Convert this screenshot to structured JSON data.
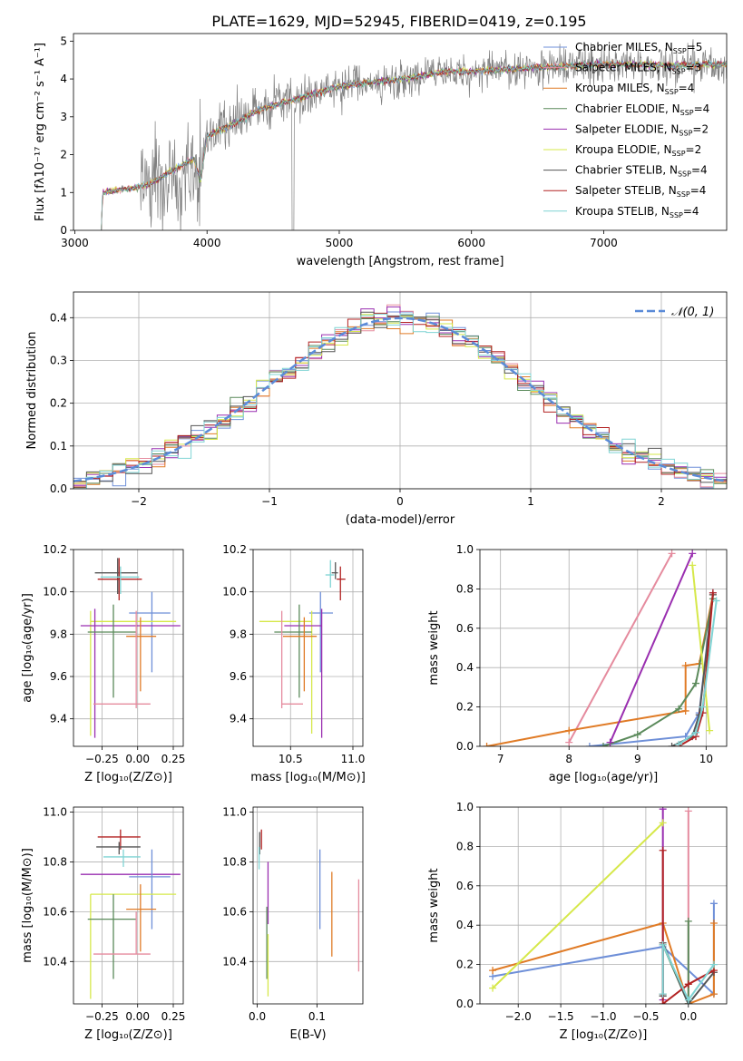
{
  "figure": {
    "title": "PLATE=1629, MJD=52945, FIBERID=0419, z=0.195"
  },
  "colors": {
    "chab_miles": "#6e8fd8",
    "salp_miles": "#e58b9e",
    "krou_miles": "#e07b26",
    "chab_elodie": "#5b8a5b",
    "salp_elodie": "#9a2fb0",
    "krou_elodie": "#d6e84a",
    "chab_stelib": "#555555",
    "salp_stelib": "#b22222",
    "krou_stelib": "#7fd4d4",
    "data_gray": "#808080",
    "normal_curve": "#5b8bd8"
  },
  "chart_data": [
    {
      "id": "spectrum",
      "type": "line",
      "xlabel": "wavelength [Angstrom, rest frame]",
      "ylabel": "Flux [fλ10⁻¹⁷ erg cm⁻² s⁻¹ A⁻¹]",
      "xlim": [
        2990,
        7930
      ],
      "ylim": [
        0,
        5.2
      ],
      "xticks": [
        3000,
        4000,
        5000,
        6000,
        7000
      ],
      "yticks": [
        0,
        1,
        2,
        3,
        4,
        5
      ],
      "x_range_plotted": [
        3200,
        7930
      ],
      "continuum_knots": [
        [
          3200,
          0.0
        ],
        [
          3210,
          1.0
        ],
        [
          3400,
          1.1
        ],
        [
          3550,
          1.2
        ],
        [
          3700,
          1.5
        ],
        [
          3900,
          1.9
        ],
        [
          3950,
          1.3
        ],
        [
          4000,
          2.5
        ],
        [
          4200,
          2.8
        ],
        [
          4400,
          3.2
        ],
        [
          4600,
          3.4
        ],
        [
          4800,
          3.6
        ],
        [
          5000,
          3.8
        ],
        [
          5200,
          3.9
        ],
        [
          5500,
          4.0
        ],
        [
          5800,
          4.2
        ],
        [
          6000,
          4.2
        ],
        [
          6500,
          4.3
        ],
        [
          7000,
          4.4
        ],
        [
          7500,
          4.35
        ],
        [
          7930,
          4.4
        ]
      ],
      "series": [
        {
          "name": "Chabrier MILES, N_SSP=5",
          "color_key": "chab_miles"
        },
        {
          "name": "Salpeter MILES, N_SSP=3",
          "color_key": "salp_miles"
        },
        {
          "name": "Kroupa MILES, N_SSP=4",
          "color_key": "krou_miles"
        },
        {
          "name": "Chabrier ELODIE, N_SSP=4",
          "color_key": "chab_elodie"
        },
        {
          "name": "Salpeter ELODIE, N_SSP=2",
          "color_key": "salp_elodie"
        },
        {
          "name": "Kroupa ELODIE, N_SSP=2",
          "color_key": "krou_elodie"
        },
        {
          "name": "Chabrier STELIB, N_SSP=4",
          "color_key": "chab_stelib"
        },
        {
          "name": "Salpeter STELIB, N_SSP=4",
          "color_key": "salp_stelib"
        },
        {
          "name": "Kroupa STELIB, N_SSP=4",
          "color_key": "krou_stelib"
        }
      ],
      "legend_placement": "upper-right"
    },
    {
      "id": "residuals",
      "type": "histogram",
      "xlabel": "(data-model)/error",
      "ylabel": "Normed distribution",
      "xlim": [
        -2.5,
        2.5
      ],
      "ylim": [
        0,
        0.46
      ],
      "xticks": [
        -2,
        -1,
        0,
        1,
        2
      ],
      "yticks": [
        0.0,
        0.1,
        0.2,
        0.3,
        0.4
      ],
      "bin_width": 0.1,
      "curve_label": "𝒩(0, 1)",
      "grid": true,
      "legend_placement": "upper-right"
    },
    {
      "id": "age_vs_Z",
      "type": "scatter",
      "xlabel": "Z [log₁₀(Z/Z⊙)]",
      "ylabel": "age  [log₁₀(age/yr)]",
      "xlim": [
        -0.45,
        0.32
      ],
      "ylim": [
        9.27,
        10.2
      ],
      "xticks": [
        -0.25,
        0.0,
        0.25
      ],
      "yticks": [
        9.4,
        9.6,
        9.8,
        10.0,
        10.2
      ],
      "grid": true,
      "points": [
        {
          "color_key": "chab_stelib",
          "x": -0.14,
          "xerr": [
            0.16,
            0.14
          ],
          "y": 10.09,
          "yerr": [
            0.1,
            0.07
          ]
        },
        {
          "color_key": "salp_stelib",
          "x": -0.13,
          "xerr": [
            0.15,
            0.16
          ],
          "y": 10.06,
          "yerr": [
            0.1,
            0.1
          ]
        },
        {
          "color_key": "krou_stelib",
          "x": -0.12,
          "xerr": [
            0.14,
            0.13
          ],
          "y": 10.07,
          "yerr": [
            0.08,
            0.05
          ]
        },
        {
          "color_key": "chab_miles",
          "x": 0.1,
          "xerr": [
            0.16,
            0.13
          ],
          "y": 9.9,
          "yerr": [
            0.28,
            0.1
          ]
        },
        {
          "color_key": "krou_elodie",
          "x": -0.33,
          "xerr": [
            0.0,
            0.6
          ],
          "y": 9.86,
          "yerr": [
            0.54,
            0.05
          ]
        },
        {
          "color_key": "salp_elodie",
          "x": -0.3,
          "xerr": [
            0.1,
            0.6
          ],
          "y": 9.84,
          "yerr": [
            0.53,
            0.08
          ]
        },
        {
          "color_key": "chab_elodie",
          "x": -0.17,
          "xerr": [
            0.18,
            0.16
          ],
          "y": 9.81,
          "yerr": [
            0.31,
            0.13
          ]
        },
        {
          "color_key": "krou_miles",
          "x": 0.02,
          "xerr": [
            0.1,
            0.11
          ],
          "y": 9.79,
          "yerr": [
            0.26,
            0.09
          ]
        },
        {
          "color_key": "salp_miles",
          "x": -0.01,
          "xerr": [
            0.3,
            0.1
          ],
          "y": 9.47,
          "yerr": [
            0.02,
            0.44
          ]
        }
      ]
    },
    {
      "id": "age_vs_mass",
      "type": "scatter",
      "xlabel": "mass [log₁₀(M/M⊙)]",
      "ylabel": "",
      "xlim": [
        10.2,
        11.08
      ],
      "ylim": [
        9.27,
        10.2
      ],
      "xticks": [
        10.5,
        11.0
      ],
      "yticks": [
        9.4,
        9.6,
        9.8,
        10.0,
        10.2
      ],
      "grid": true,
      "points": [
        {
          "color_key": "chab_stelib",
          "x": 10.86,
          "xerr": [
            0.03,
            0.02
          ],
          "y": 10.09,
          "yerr": [
            0.03,
            0.05
          ]
        },
        {
          "color_key": "salp_stelib",
          "x": 10.9,
          "xerr": [
            0.03,
            0.04
          ],
          "y": 10.06,
          "yerr": [
            0.1,
            0.06
          ]
        },
        {
          "color_key": "krou_stelib",
          "x": 10.82,
          "xerr": [
            0.04,
            0.03
          ],
          "y": 10.08,
          "yerr": [
            0.06,
            0.07
          ]
        },
        {
          "color_key": "chab_miles",
          "x": 10.74,
          "xerr": [
            0.09,
            0.1
          ],
          "y": 9.9,
          "yerr": [
            0.28,
            0.1
          ]
        },
        {
          "color_key": "krou_elodie",
          "x": 10.67,
          "xerr": [
            0.42,
            0.0
          ],
          "y": 9.86,
          "yerr": [
            0.53,
            0.05
          ]
        },
        {
          "color_key": "salp_elodie",
          "x": 10.75,
          "xerr": [
            0.3,
            0.0
          ],
          "y": 9.84,
          "yerr": [
            0.53,
            0.08
          ]
        },
        {
          "color_key": "chab_elodie",
          "x": 10.57,
          "xerr": [
            0.2,
            0.1
          ],
          "y": 9.81,
          "yerr": [
            0.31,
            0.13
          ]
        },
        {
          "color_key": "krou_miles",
          "x": 10.61,
          "xerr": [
            0.17,
            0.1
          ],
          "y": 9.79,
          "yerr": [
            0.26,
            0.09
          ]
        },
        {
          "color_key": "salp_miles",
          "x": 10.43,
          "xerr": [
            0.0,
            0.17
          ],
          "y": 9.47,
          "yerr": [
            0.02,
            0.44
          ]
        }
      ]
    },
    {
      "id": "weight_vs_age",
      "type": "line",
      "xlabel": "age  [log₁₀(age/yr)]",
      "ylabel": "mass weight",
      "xlim": [
        6.7,
        10.3
      ],
      "ylim": [
        0,
        1.0
      ],
      "xticks": [
        7,
        8,
        9,
        10
      ],
      "yticks": [
        0.0,
        0.2,
        0.4,
        0.6,
        0.8,
        1.0
      ],
      "grid": true,
      "series": [
        {
          "color_key": "chab_miles",
          "x": [
            8.3,
            9.7,
            9.9,
            10.1
          ],
          "y": [
            0.0,
            0.05,
            0.17,
            0.78
          ]
        },
        {
          "color_key": "salp_miles",
          "x": [
            8.0,
            9.5
          ],
          "y": [
            0.02,
            0.98
          ]
        },
        {
          "color_key": "krou_miles",
          "x": [
            6.8,
            8.0,
            9.7,
            9.7,
            9.9,
            10.1
          ],
          "y": [
            0.0,
            0.08,
            0.18,
            0.41,
            0.42,
            0.77
          ]
        },
        {
          "color_key": "chab_elodie",
          "x": [
            8.5,
            9.0,
            9.6,
            9.85,
            10.1
          ],
          "y": [
            0.0,
            0.06,
            0.19,
            0.32,
            0.75
          ]
        },
        {
          "color_key": "salp_elodie",
          "x": [
            8.6,
            9.8
          ],
          "y": [
            0.02,
            0.98
          ]
        },
        {
          "color_key": "krou_elodie",
          "x": [
            9.8,
            10.05
          ],
          "y": [
            0.92,
            0.08
          ]
        },
        {
          "color_key": "chab_stelib",
          "x": [
            9.5,
            9.8,
            9.9,
            10.1
          ],
          "y": [
            0.0,
            0.05,
            0.16,
            0.77
          ]
        },
        {
          "color_key": "salp_stelib",
          "x": [
            9.6,
            9.85,
            9.95,
            10.1
          ],
          "y": [
            0.0,
            0.05,
            0.17,
            0.78
          ]
        },
        {
          "color_key": "krou_stelib",
          "x": [
            9.6,
            9.85,
            9.95,
            10.15
          ],
          "y": [
            0.01,
            0.07,
            0.2,
            0.74
          ]
        }
      ]
    },
    {
      "id": "mass_vs_Z",
      "type": "scatter",
      "xlabel": "Z [log₁₀(Z/Z⊙)]",
      "ylabel": "mass [log₁₀(M/M⊙)]",
      "xlim": [
        -0.45,
        0.32
      ],
      "ylim": [
        10.23,
        11.02
      ],
      "xticks": [
        -0.25,
        0.0,
        0.25
      ],
      "yticks": [
        10.4,
        10.6,
        10.8,
        11.0
      ],
      "grid": true,
      "points": [
        {
          "color_key": "salp_stelib",
          "x": -0.12,
          "xerr": [
            0.16,
            0.14
          ],
          "y": 10.9,
          "yerr": [
            0.05,
            0.03
          ]
        },
        {
          "color_key": "chab_stelib",
          "x": -0.13,
          "xerr": [
            0.16,
            0.15
          ],
          "y": 10.86,
          "yerr": [
            0.03,
            0.02
          ]
        },
        {
          "color_key": "krou_stelib",
          "x": -0.1,
          "xerr": [
            0.14,
            0.12
          ],
          "y": 10.82,
          "yerr": [
            0.04,
            0.03
          ]
        },
        {
          "color_key": "salp_elodie",
          "x": -0.3,
          "xerr": [
            0.1,
            0.6
          ],
          "y": 10.75,
          "yerr": [
            0.0,
            0.0
          ]
        },
        {
          "color_key": "chab_miles",
          "x": 0.1,
          "xerr": [
            0.16,
            0.13
          ],
          "y": 10.74,
          "yerr": [
            0.21,
            0.11
          ]
        },
        {
          "color_key": "krou_elodie",
          "x": -0.33,
          "xerr": [
            0.0,
            0.6
          ],
          "y": 10.67,
          "yerr": [
            0.42,
            0.0
          ]
        },
        {
          "color_key": "krou_miles",
          "x": 0.02,
          "xerr": [
            0.1,
            0.11
          ],
          "y": 10.61,
          "yerr": [
            0.17,
            0.1
          ]
        },
        {
          "color_key": "chab_elodie",
          "x": -0.17,
          "xerr": [
            0.18,
            0.16
          ],
          "y": 10.57,
          "yerr": [
            0.24,
            0.1
          ]
        },
        {
          "color_key": "salp_miles",
          "x": -0.01,
          "xerr": [
            0.3,
            0.1
          ],
          "y": 10.43,
          "yerr": [
            0.0,
            0.17
          ]
        }
      ]
    },
    {
      "id": "mass_vs_ebv",
      "type": "scatter",
      "xlabel": "E(B-V)",
      "ylabel": "",
      "xlim": [
        -0.007,
        0.177
      ],
      "ylim": [
        10.23,
        11.02
      ],
      "xticks": [
        0.0,
        0.1
      ],
      "yticks": [
        10.4,
        10.6,
        10.8,
        11.0
      ],
      "grid": true,
      "points": [
        {
          "color_key": "salp_stelib",
          "x": 0.007,
          "y": 10.9,
          "yerr": [
            0.05,
            0.03
          ]
        },
        {
          "color_key": "chab_stelib",
          "x": 0.004,
          "y": 10.87,
          "yerr": [
            0.04,
            0.05
          ]
        },
        {
          "color_key": "krou_stelib",
          "x": 0.003,
          "y": 10.83,
          "yerr": [
            0.06,
            0.03
          ]
        },
        {
          "color_key": "salp_elodie",
          "x": 0.018,
          "y": 10.75,
          "yerr": [
            0.2,
            0.05
          ]
        },
        {
          "color_key": "chab_elodie",
          "x": 0.016,
          "y": 10.5,
          "yerr": [
            0.17,
            0.12
          ]
        },
        {
          "color_key": "krou_elodie",
          "x": 0.018,
          "y": 10.45,
          "yerr": [
            0.19,
            0.06
          ]
        },
        {
          "color_key": "chab_miles",
          "x": 0.105,
          "y": 10.72,
          "yerr": [
            0.19,
            0.13
          ]
        },
        {
          "color_key": "krou_miles",
          "x": 0.125,
          "y": 10.6,
          "yerr": [
            0.18,
            0.16
          ]
        },
        {
          "color_key": "salp_miles",
          "x": 0.17,
          "y": 10.55,
          "yerr": [
            0.19,
            0.18
          ]
        }
      ]
    },
    {
      "id": "weight_vs_Z",
      "type": "line",
      "xlabel": "Z [log₁₀(Z/Z⊙)]",
      "ylabel": "mass weight",
      "xlim": [
        -2.45,
        0.45
      ],
      "ylim": [
        0,
        1.0
      ],
      "xticks": [
        -2.0,
        -1.5,
        -1.0,
        -0.5,
        0.0
      ],
      "yticks": [
        0.0,
        0.2,
        0.4,
        0.6,
        0.8,
        1.0
      ],
      "grid": true,
      "series": [
        {
          "color_key": "chab_miles",
          "x": [
            -2.3,
            -0.3,
            0.3,
            0.3
          ],
          "y": [
            0.14,
            0.29,
            0.05,
            0.51
          ]
        },
        {
          "color_key": "salp_miles",
          "x": [
            0.0,
            0.0
          ],
          "y": [
            0.0,
            0.98
          ]
        },
        {
          "color_key": "krou_miles",
          "x": [
            -2.3,
            -0.3,
            0.0,
            0.3,
            0.3
          ],
          "y": [
            0.17,
            0.41,
            0.0,
            0.05,
            0.41
          ]
        },
        {
          "color_key": "chab_elodie",
          "x": [
            -0.3,
            -0.3,
            0.0,
            0.0
          ],
          "y": [
            0.04,
            0.3,
            0.0,
            0.42
          ]
        },
        {
          "color_key": "salp_elodie",
          "x": [
            -0.3,
            -0.3
          ],
          "y": [
            0.02,
            0.99
          ]
        },
        {
          "color_key": "krou_elodie",
          "x": [
            -2.3,
            -0.3
          ],
          "y": [
            0.08,
            0.92
          ]
        },
        {
          "color_key": "chab_stelib",
          "x": [
            -0.3,
            -0.3,
            0.0,
            0.3
          ],
          "y": [
            0.04,
            0.31,
            0.0,
            0.16
          ]
        },
        {
          "color_key": "salp_stelib",
          "x": [
            -0.3,
            -0.3,
            -0.3,
            0.0,
            0.3
          ],
          "y": [
            0.78,
            0.05,
            0.0,
            0.1,
            0.17
          ]
        },
        {
          "color_key": "krou_stelib",
          "x": [
            -0.3,
            -0.3,
            0.0,
            0.3
          ],
          "y": [
            0.05,
            0.3,
            0.02,
            0.2
          ]
        }
      ]
    }
  ]
}
